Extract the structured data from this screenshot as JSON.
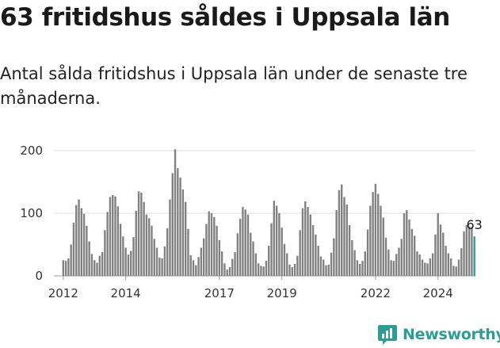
{
  "header": {
    "title": "63 fritidshus såldes i Uppsala län",
    "subtitle": "Antal sålda fritidshus i Uppsala län under de senaste tre månaderna."
  },
  "brand": {
    "name": "Newsworthy",
    "icon": "newsworthy-logo-icon",
    "color": "#2c9c96"
  },
  "chart_data": {
    "type": "bar",
    "ylim": [
      0,
      200
    ],
    "y_ticks": [
      0,
      100,
      200
    ],
    "x_range": [
      2011.7,
      2025.2
    ],
    "x_ticks": [
      {
        "value": 2012,
        "label": "2012"
      },
      {
        "value": 2014,
        "label": "2014"
      },
      {
        "value": 2017,
        "label": "2017"
      },
      {
        "value": 2019,
        "label": "2019"
      },
      {
        "value": 2022,
        "label": "2022"
      },
      {
        "value": 2024,
        "label": "2024"
      }
    ],
    "grid": true,
    "bar_color": "#808080",
    "highlight_color": "#2c9c96",
    "start": "2012-01",
    "frequency": "monthly",
    "values": [
      25,
      24,
      28,
      50,
      85,
      113,
      122,
      108,
      99,
      80,
      55,
      35,
      25,
      21,
      32,
      38,
      73,
      102,
      126,
      129,
      127,
      111,
      83,
      63,
      45,
      34,
      40,
      62,
      104,
      135,
      133,
      118,
      98,
      92,
      80,
      59,
      45,
      29,
      28,
      47,
      76,
      122,
      164,
      202,
      172,
      157,
      138,
      118,
      75,
      33,
      25,
      17,
      30,
      45,
      60,
      83,
      103,
      100,
      94,
      80,
      57,
      39,
      20,
      10,
      14,
      27,
      38,
      68,
      91,
      110,
      106,
      98,
      69,
      55,
      36,
      20,
      16,
      15,
      24,
      48,
      84,
      120,
      112,
      100,
      77,
      51,
      36,
      18,
      14,
      19,
      32,
      73,
      108,
      119,
      110,
      98,
      81,
      66,
      48,
      31,
      26,
      17,
      18,
      37,
      60,
      105,
      137,
      146,
      126,
      114,
      81,
      57,
      41,
      25,
      19,
      24,
      39,
      74,
      112,
      134,
      147,
      131,
      112,
      93,
      61,
      42,
      25,
      24,
      35,
      45,
      59,
      100,
      105,
      90,
      75,
      64,
      39,
      34,
      26,
      21,
      20,
      28,
      36,
      66,
      100,
      82,
      69,
      48,
      36,
      28,
      16,
      15,
      26,
      44,
      71,
      81,
      79,
      78,
      63
    ],
    "last_label": "63"
  }
}
